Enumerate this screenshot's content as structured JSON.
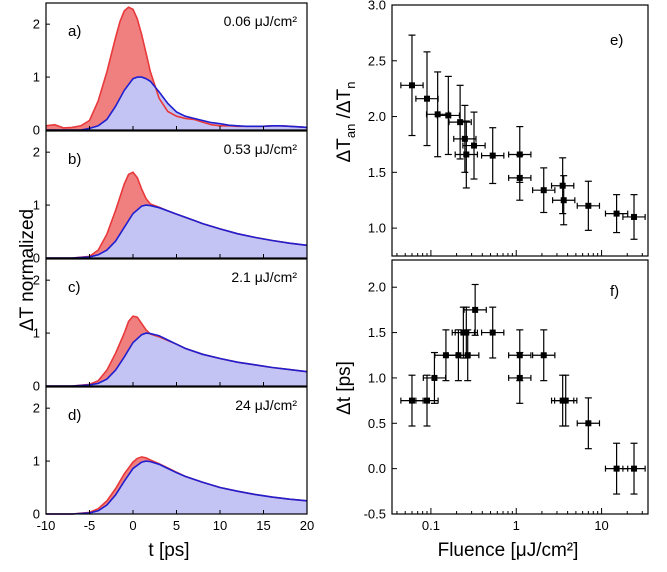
{
  "chart_data": [
    {
      "type": "area",
      "shared_x_axis": {
        "label": "t [ps]",
        "range": [
          -10,
          20
        ],
        "ticks": [
          -10,
          -5,
          0,
          5,
          10,
          15,
          20
        ]
      },
      "shared_y_label": "ΔT normalized",
      "y_range": [
        0,
        2.4
      ],
      "y_ticks": [
        0,
        1,
        2
      ],
      "colors": {
        "anisotropic": "#e8383a",
        "anisotropic_fill": "#f08080",
        "normal": "#1f1fd0",
        "normal_fill": "#c4c4f4"
      },
      "panels": [
        {
          "tag": "a)",
          "fluence": "0.06 μJ/cm²",
          "upper": {
            "x": [
              -10,
              -9,
              -8,
              -7,
              -6,
              -5,
              -4,
              -3,
              -2,
              -1.5,
              -1,
              -0.5,
              0,
              0.5,
              1,
              1.5,
              2,
              3,
              4,
              5,
              6,
              7,
              8,
              9,
              10,
              11,
              12,
              13,
              14,
              15,
              16,
              17,
              18,
              19,
              20
            ],
            "y": [
              0.08,
              0.1,
              0.04,
              0.05,
              0.08,
              0.18,
              0.55,
              1.1,
              1.75,
              2.05,
              2.25,
              2.32,
              2.28,
              2.1,
              1.8,
              1.45,
              1.1,
              0.6,
              0.35,
              0.26,
              0.22,
              0.2,
              0.15,
              0.1,
              0.08,
              0.08,
              0.07,
              0.07,
              0.07,
              0.07,
              0.08,
              0.08,
              0.07,
              0.06,
              0.05
            ]
          },
          "lower": {
            "x": [
              -10,
              -9,
              -8,
              -7,
              -6,
              -5,
              -4,
              -3,
              -2,
              -1,
              0,
              0.5,
              1,
              1.5,
              2,
              3,
              4,
              5,
              6,
              7,
              8,
              9,
              10,
              11,
              12,
              13,
              14,
              15,
              16,
              17,
              18,
              19,
              20
            ],
            "y": [
              0,
              0,
              0,
              0,
              0,
              0.03,
              0.08,
              0.2,
              0.45,
              0.75,
              0.97,
              1.0,
              1.0,
              0.97,
              0.92,
              0.72,
              0.5,
              0.34,
              0.26,
              0.22,
              0.18,
              0.14,
              0.12,
              0.09,
              0.08,
              0.07,
              0.07,
              0.07,
              0.08,
              0.08,
              0.07,
              0.06,
              0.05
            ]
          }
        },
        {
          "tag": "b)",
          "fluence": "0.53 μJ/cm²",
          "upper": {
            "x": [
              -10,
              -7,
              -5,
              -4,
              -3,
              -2,
              -1,
              -0.5,
              0,
              0.5,
              1,
              1.5,
              2,
              3,
              4,
              5,
              6,
              7,
              8,
              10,
              12,
              14,
              16,
              18,
              20
            ],
            "y": [
              0,
              0,
              0.03,
              0.15,
              0.45,
              0.9,
              1.4,
              1.58,
              1.62,
              1.52,
              1.3,
              1.12,
              1.02,
              0.96,
              0.89,
              0.83,
              0.77,
              0.71,
              0.65,
              0.55,
              0.46,
              0.39,
              0.33,
              0.28,
              0.24
            ]
          },
          "lower": {
            "x": [
              -10,
              -7,
              -5,
              -4,
              -3,
              -2,
              -1,
              0,
              1,
              1.5,
              2,
              3,
              4,
              5,
              6,
              7,
              8,
              10,
              12,
              14,
              16,
              18,
              20
            ],
            "y": [
              0,
              0,
              0.02,
              0.06,
              0.15,
              0.32,
              0.58,
              0.84,
              0.98,
              1.0,
              0.99,
              0.95,
              0.89,
              0.83,
              0.77,
              0.71,
              0.65,
              0.55,
              0.46,
              0.39,
              0.33,
              0.28,
              0.24
            ]
          }
        },
        {
          "tag": "c)",
          "fluence": "2.1 μJ/cm²",
          "upper": {
            "x": [
              -10,
              -7,
              -5,
              -4,
              -3,
              -2,
              -1,
              -0.5,
              0,
              0.5,
              1,
              1.5,
              2,
              3,
              4,
              5,
              6,
              8,
              10,
              12,
              14,
              16,
              18,
              20
            ],
            "y": [
              0,
              0,
              0.03,
              0.1,
              0.3,
              0.62,
              1.0,
              1.22,
              1.32,
              1.3,
              1.18,
              1.06,
              0.98,
              0.93,
              0.86,
              0.79,
              0.71,
              0.6,
              0.52,
              0.45,
              0.4,
              0.35,
              0.31,
              0.27
            ]
          },
          "lower": {
            "x": [
              -10,
              -7,
              -5,
              -4,
              -3,
              -2,
              -1,
              0,
              1,
              1.5,
              2,
              3,
              4,
              5,
              6,
              8,
              10,
              12,
              14,
              16,
              18,
              20
            ],
            "y": [
              0,
              0,
              0.02,
              0.05,
              0.13,
              0.3,
              0.55,
              0.82,
              0.97,
              1.0,
              0.99,
              0.95,
              0.87,
              0.79,
              0.71,
              0.6,
              0.52,
              0.45,
              0.4,
              0.35,
              0.31,
              0.27
            ]
          }
        },
        {
          "tag": "d)",
          "fluence": "24 μJ/cm²",
          "upper": {
            "x": [
              -10,
              -7,
              -5,
              -4,
              -3,
              -2,
              -1,
              0,
              0.5,
              1,
              1.5,
              2,
              3,
              4,
              5,
              6,
              8,
              10,
              12,
              14,
              16,
              18,
              20
            ],
            "y": [
              0,
              0,
              0.03,
              0.1,
              0.25,
              0.48,
              0.76,
              0.98,
              1.05,
              1.08,
              1.06,
              1.02,
              0.95,
              0.87,
              0.79,
              0.71,
              0.6,
              0.5,
              0.43,
              0.37,
              0.32,
              0.28,
              0.25
            ]
          },
          "lower": {
            "x": [
              -10,
              -7,
              -5,
              -4,
              -3,
              -2,
              -1,
              0,
              1,
              1.5,
              2,
              3,
              4,
              5,
              6,
              8,
              10,
              12,
              14,
              16,
              18,
              20
            ],
            "y": [
              0,
              0,
              0.02,
              0.06,
              0.17,
              0.36,
              0.62,
              0.86,
              0.98,
              1.0,
              0.99,
              0.94,
              0.86,
              0.78,
              0.71,
              0.6,
              0.5,
              0.43,
              0.37,
              0.32,
              0.28,
              0.25
            ]
          }
        }
      ]
    },
    {
      "type": "scatter",
      "tag": "e)",
      "ylabel_main": "ΔT",
      "ylabel_sub1": "an",
      "ylabel_mid": " /ΔT",
      "ylabel_sub2": "n",
      "x_scale": "log",
      "x_range": [
        0.035,
        35
      ],
      "y_range": [
        0.75,
        3.0
      ],
      "y_ticks": [
        1.0,
        1.5,
        2.0,
        2.5,
        3.0
      ],
      "y_tick_labels": [
        "1.0",
        "1.5",
        "2.0",
        "2.5",
        "3.0"
      ],
      "x_error_factor": 1.35,
      "points": [
        {
          "x": 0.06,
          "y": 2.28,
          "yerr": 0.45
        },
        {
          "x": 0.09,
          "y": 2.16,
          "yerr": 0.42
        },
        {
          "x": 0.12,
          "y": 2.02,
          "yerr": 0.38
        },
        {
          "x": 0.16,
          "y": 2.01,
          "yerr": 0.35
        },
        {
          "x": 0.22,
          "y": 1.95,
          "yerr": 0.33
        },
        {
          "x": 0.25,
          "y": 1.8,
          "yerr": 0.3
        },
        {
          "x": 0.26,
          "y": 1.66,
          "yerr": 0.3
        },
        {
          "x": 0.32,
          "y": 1.74,
          "yerr": 0.3
        },
        {
          "x": 0.53,
          "y": 1.65,
          "yerr": 0.25
        },
        {
          "x": 1.1,
          "y": 1.66,
          "yerr": 0.25
        },
        {
          "x": 1.1,
          "y": 1.45,
          "yerr": 0.2
        },
        {
          "x": 2.1,
          "y": 1.34,
          "yerr": 0.2
        },
        {
          "x": 3.5,
          "y": 1.38,
          "yerr": 0.25
        },
        {
          "x": 3.6,
          "y": 1.25,
          "yerr": 0.22
        },
        {
          "x": 7,
          "y": 1.2,
          "yerr": 0.22
        },
        {
          "x": 15,
          "y": 1.13,
          "yerr": 0.17
        },
        {
          "x": 24,
          "y": 1.1,
          "yerr": 0.2
        }
      ]
    },
    {
      "type": "scatter",
      "tag": "f)",
      "ylabel": "Δt [ps]",
      "xlabel": "Fluence [μJ/cm²]",
      "x_scale": "log",
      "x_range": [
        0.035,
        35
      ],
      "x_ticks": [
        0.1,
        1,
        10
      ],
      "x_tick_labels": [
        "0.1",
        "1",
        "10"
      ],
      "y_range": [
        -0.5,
        2.3
      ],
      "y_ticks": [
        -0.5,
        0.0,
        0.5,
        1.0,
        1.5,
        2.0
      ],
      "y_tick_labels": [
        "-0.5",
        "0.0",
        "0.5",
        "1.0",
        "1.5",
        "2.0"
      ],
      "x_error_factor": 1.35,
      "points": [
        {
          "x": 0.06,
          "y": 0.75,
          "yerr": 0.28
        },
        {
          "x": 0.09,
          "y": 0.75,
          "yerr": 0.28
        },
        {
          "x": 0.11,
          "y": 1.0,
          "yerr": 0.28
        },
        {
          "x": 0.15,
          "y": 1.25,
          "yerr": 0.28
        },
        {
          "x": 0.21,
          "y": 1.25,
          "yerr": 0.28
        },
        {
          "x": 0.24,
          "y": 1.5,
          "yerr": 0.28
        },
        {
          "x": 0.26,
          "y": 1.5,
          "yerr": 0.28
        },
        {
          "x": 0.27,
          "y": 1.25,
          "yerr": 0.28
        },
        {
          "x": 0.33,
          "y": 1.75,
          "yerr": 0.28
        },
        {
          "x": 0.53,
          "y": 1.5,
          "yerr": 0.28
        },
        {
          "x": 1.1,
          "y": 1.25,
          "yerr": 0.28
        },
        {
          "x": 1.1,
          "y": 1.0,
          "yerr": 0.28
        },
        {
          "x": 2.1,
          "y": 1.25,
          "yerr": 0.28
        },
        {
          "x": 3.5,
          "y": 0.75,
          "yerr": 0.28
        },
        {
          "x": 3.8,
          "y": 0.75,
          "yerr": 0.28
        },
        {
          "x": 7,
          "y": 0.5,
          "yerr": 0.28
        },
        {
          "x": 15,
          "y": 0.0,
          "yerr": 0.28
        },
        {
          "x": 24,
          "y": 0.0,
          "yerr": 0.28
        }
      ]
    }
  ]
}
